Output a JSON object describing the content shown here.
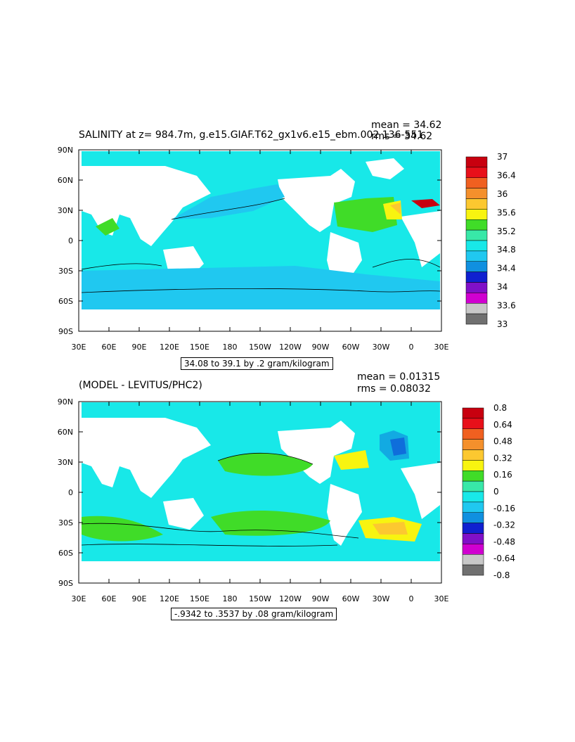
{
  "panel1": {
    "title": "SALINITY at z= 984.7m, g.e15.GIAF.T62_gx1v6.e15_ebm.002 136-551",
    "mean_label": "mean = 34.62",
    "rms_label": "rms = 34.62",
    "range_label": "34.08 to 39.1 by .2 gram/kilogram",
    "colorbar_labels": [
      "37",
      "36.4",
      "36",
      "35.6",
      "35.2",
      "34.8",
      "34.4",
      "34",
      "33.6",
      "33"
    ],
    "colorbar_colors": [
      "#c8000f",
      "#e8101a",
      "#f06020",
      "#f4902c",
      "#fcc830",
      "#f8f410",
      "#40dc28",
      "#38e8a8",
      "#18e8e8",
      "#20c8f0",
      "#1090e0",
      "#1020d0",
      "#8010c8",
      "#d000d0",
      "#c8c8c8",
      "#707070"
    ]
  },
  "panel2": {
    "title": "(MODEL - LEVITUS/PHC2)",
    "mean_label": "mean = 0.01315",
    "rms_label": "rms = 0.08032",
    "range_label": "-.9342 to .3537 by .08 gram/kilogram",
    "colorbar_labels": [
      "0.8",
      "0.64",
      "0.48",
      "0.32",
      "0.16",
      "0",
      "-0.16",
      "-0.32",
      "-0.48",
      "-0.64",
      "-0.8"
    ],
    "colorbar_colors": [
      "#c8000f",
      "#e8101a",
      "#f06020",
      "#f4902c",
      "#fcc830",
      "#f8f410",
      "#40dc28",
      "#38e8a8",
      "#18e8e8",
      "#20c8f0",
      "#1090e0",
      "#1020d0",
      "#8010c8",
      "#d000d0",
      "#c8c8c8",
      "#707070"
    ]
  },
  "lat_labels": [
    "90N",
    "60N",
    "30N",
    "0",
    "30S",
    "60S",
    "90S"
  ],
  "lon_labels": [
    "30E",
    "60E",
    "90E",
    "120E",
    "150E",
    "180",
    "150W",
    "120W",
    "90W",
    "60W",
    "30W",
    "0",
    "30E"
  ]
}
